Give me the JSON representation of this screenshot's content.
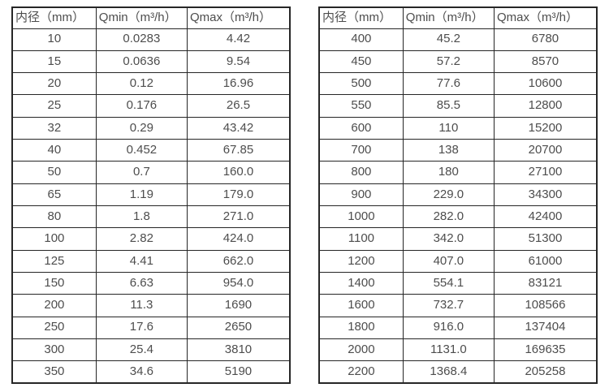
{
  "page": {
    "background": "#ffffff",
    "border_color": "#262626",
    "text_color": "#4d4d4d"
  },
  "tables": [
    {
      "name": "flow-spec-small-diameters",
      "headers": [
        "内径（mm）",
        "Qmin（m³/h）",
        "Qmax（m³/h）"
      ],
      "rows": [
        [
          "10",
          "0.0283",
          "4.42"
        ],
        [
          "15",
          "0.0636",
          "9.54"
        ],
        [
          "20",
          "0.12",
          "16.96"
        ],
        [
          "25",
          "0.176",
          "26.5"
        ],
        [
          "32",
          "0.29",
          "43.42"
        ],
        [
          "40",
          "0.452",
          "67.85"
        ],
        [
          "50",
          "0.7",
          "160.0"
        ],
        [
          "65",
          "1.19",
          "179.0"
        ],
        [
          "80",
          "1.8",
          "271.0"
        ],
        [
          "100",
          "2.82",
          "424.0"
        ],
        [
          "125",
          "4.41",
          "662.0"
        ],
        [
          "150",
          "6.63",
          "954.0"
        ],
        [
          "200",
          "11.3",
          "1690"
        ],
        [
          "250",
          "17.6",
          "2650"
        ],
        [
          "300",
          "25.4",
          "3810"
        ],
        [
          "350",
          "34.6",
          "5190"
        ]
      ]
    },
    {
      "name": "flow-spec-large-diameters",
      "headers": [
        "内径（mm）",
        "Qmin（m³/h）",
        "Qmax（m³/h）"
      ],
      "rows": [
        [
          "400",
          "45.2",
          "6780"
        ],
        [
          "450",
          "57.2",
          "8570"
        ],
        [
          "500",
          "77.6",
          "10600"
        ],
        [
          "550",
          "85.5",
          "12800"
        ],
        [
          "600",
          "110",
          "15200"
        ],
        [
          "700",
          "138",
          "20700"
        ],
        [
          "800",
          "180",
          "27100"
        ],
        [
          "900",
          "229.0",
          "34300"
        ],
        [
          "1000",
          "282.0",
          "42400"
        ],
        [
          "1100",
          "342.0",
          "51300"
        ],
        [
          "1200",
          "407.0",
          "61000"
        ],
        [
          "1400",
          "554.1",
          "83121"
        ],
        [
          "1600",
          "732.7",
          "108566"
        ],
        [
          "1800",
          "916.0",
          "137404"
        ],
        [
          "2000",
          "1131.0",
          "169635"
        ],
        [
          "2200",
          "1368.4",
          "205258"
        ]
      ]
    }
  ]
}
